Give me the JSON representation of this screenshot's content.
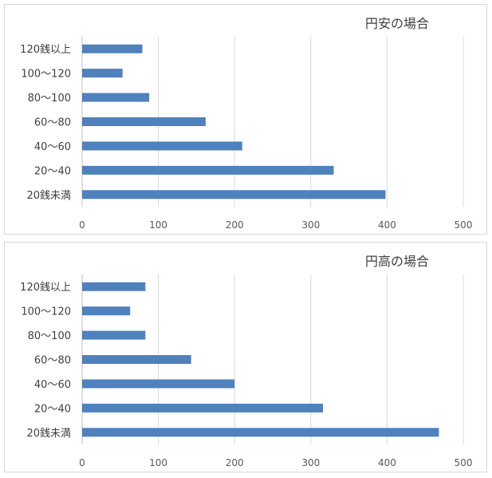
{
  "colors": {
    "bar": "#4f81bd",
    "grid": "#d9d9d9",
    "axis": "#bfbfbf",
    "text": "#404040"
  },
  "chart_data": [
    {
      "type": "bar",
      "orientation": "horizontal",
      "title": "円安の場合",
      "categories": [
        "120銭以上",
        "100～120",
        "80～100",
        "60～80",
        "40～60",
        "20～40",
        "20銭未満"
      ],
      "values": [
        79,
        53,
        88,
        162,
        210,
        330,
        398
      ],
      "xlim": [
        0,
        500
      ],
      "xticks": [
        0,
        100,
        200,
        300,
        400,
        500
      ],
      "grid": true,
      "legend": "none"
    },
    {
      "type": "bar",
      "orientation": "horizontal",
      "title": "円高の場合",
      "categories": [
        "120銭以上",
        "100～120",
        "80～100",
        "60～80",
        "40～60",
        "20～40",
        "20銭未満"
      ],
      "values": [
        83,
        63,
        83,
        143,
        200,
        316,
        468
      ],
      "xlim": [
        0,
        500
      ],
      "xticks": [
        0,
        100,
        200,
        300,
        400,
        500
      ],
      "grid": true,
      "legend": "none"
    }
  ]
}
